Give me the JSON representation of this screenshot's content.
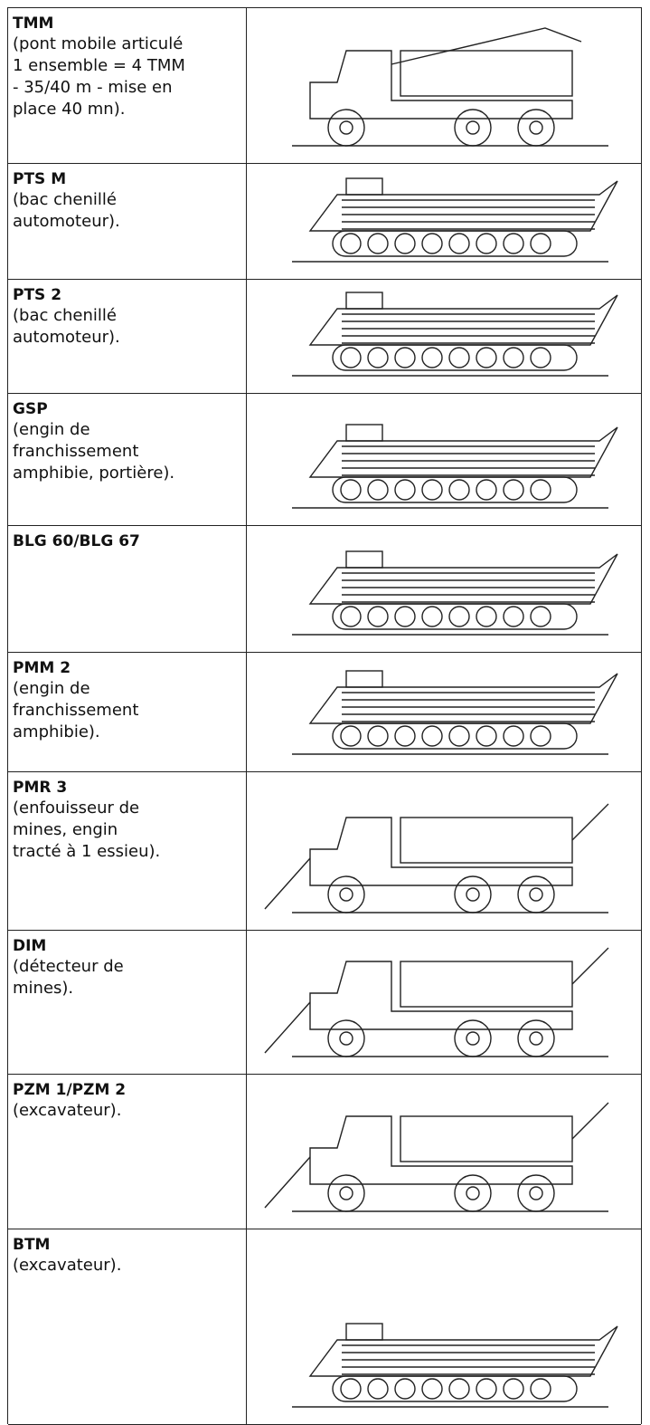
{
  "table": {
    "rows": [
      {
        "name": "TMM",
        "lines": [
          "(pont mobile articulé",
          "1 ensemble = 4 TMM",
          "- 35/40 m - mise en",
          "place 40 mn)."
        ]
      },
      {
        "name": "PTS M",
        "lines": [
          "(bac chenillé",
          "automoteur)."
        ]
      },
      {
        "name": "PTS 2",
        "lines": [
          "(bac chenillé",
          "automoteur)."
        ]
      },
      {
        "name": "GSP",
        "lines": [
          "(engin de",
          "franchissement",
          "amphibie, portière)."
        ]
      },
      {
        "name": "BLG 60/BLG 67",
        "lines": []
      },
      {
        "name": "PMM 2",
        "lines": [
          "(engin de",
          "franchissement",
          "amphibie)."
        ]
      },
      {
        "name": "PMR 3",
        "lines": [
          "(enfouisseur de",
          "mines, engin",
          "tracté à 1 essieu)."
        ]
      },
      {
        "name": "DIM",
        "lines": [
          "(détecteur de",
          "mines)."
        ]
      },
      {
        "name": "PZM 1/PZM 2",
        "lines": [
          "(excavateur)."
        ]
      },
      {
        "name": "BTM",
        "lines": [
          "(excavateur)."
        ]
      }
    ]
  }
}
